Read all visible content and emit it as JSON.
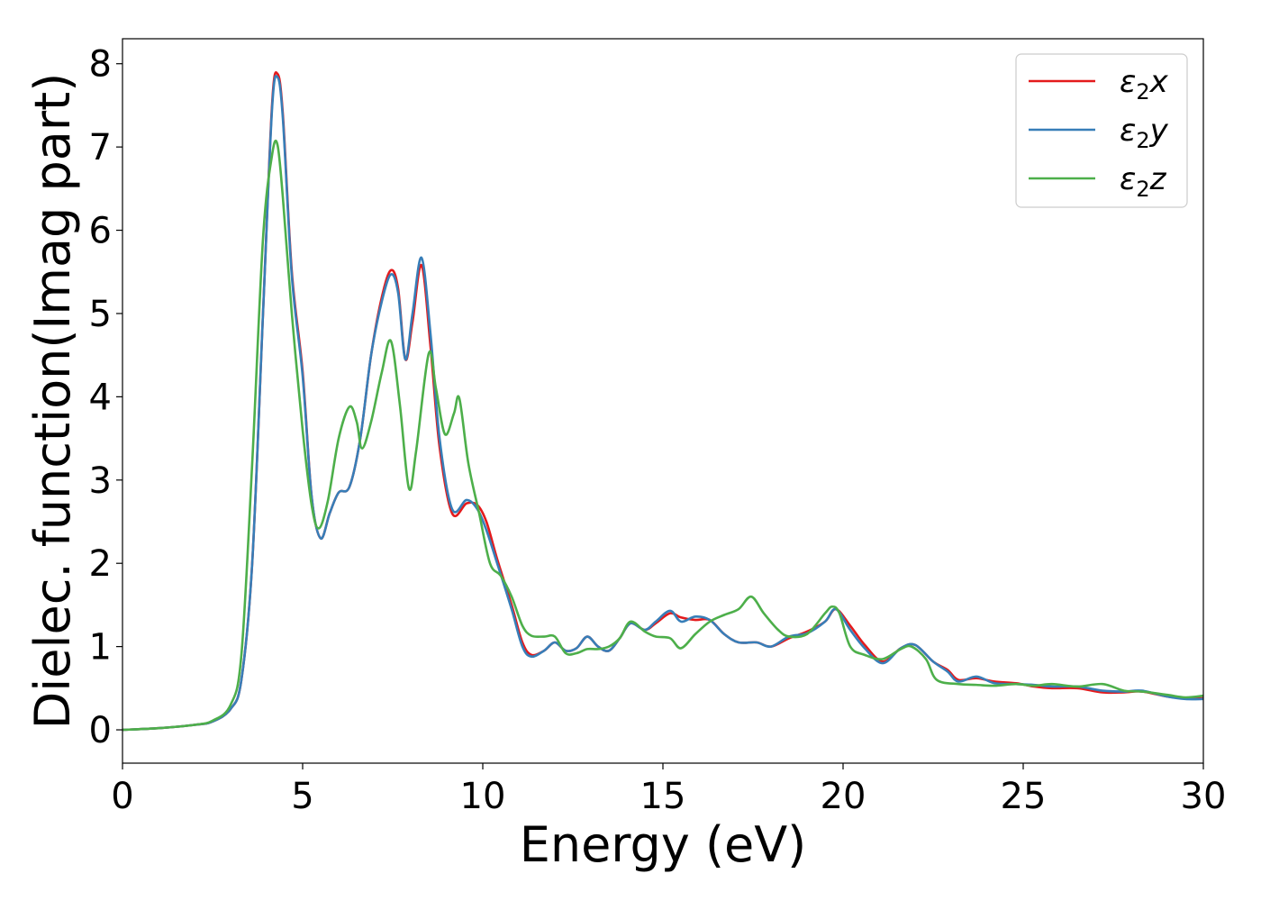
{
  "chart_data": {
    "type": "line",
    "title": "",
    "xlabel": "Energy (eV)",
    "ylabel": "Dielec. function(Imag part)",
    "xlim": [
      0,
      30
    ],
    "ylim": [
      -0.4,
      8.3
    ],
    "xticks": [
      0,
      5,
      10,
      15,
      20,
      25,
      30
    ],
    "yticks": [
      0,
      1,
      2,
      3,
      4,
      5,
      6,
      7,
      8
    ],
    "grid": false,
    "legend_position": "top-right",
    "series": [
      {
        "name": "ε2x",
        "legend_base": "ε",
        "legend_sub": "2",
        "legend_suffix": "x",
        "color": "#e41a1c",
        "points": [
          [
            0,
            0
          ],
          [
            1,
            0.02
          ],
          [
            2,
            0.06
          ],
          [
            2.5,
            0.1
          ],
          [
            3,
            0.25
          ],
          [
            3.3,
            0.6
          ],
          [
            3.6,
            2.0
          ],
          [
            3.9,
            5.0
          ],
          [
            4.15,
            7.5
          ],
          [
            4.3,
            7.88
          ],
          [
            4.45,
            7.4
          ],
          [
            4.7,
            5.5
          ],
          [
            5.0,
            4.3
          ],
          [
            5.25,
            2.8
          ],
          [
            5.5,
            2.3
          ],
          [
            5.75,
            2.6
          ],
          [
            6.0,
            2.85
          ],
          [
            6.3,
            2.92
          ],
          [
            6.6,
            3.5
          ],
          [
            6.9,
            4.5
          ],
          [
            7.2,
            5.2
          ],
          [
            7.45,
            5.52
          ],
          [
            7.65,
            5.3
          ],
          [
            7.85,
            4.45
          ],
          [
            8.05,
            4.9
          ],
          [
            8.3,
            5.58
          ],
          [
            8.55,
            4.6
          ],
          [
            8.8,
            3.4
          ],
          [
            9.15,
            2.6
          ],
          [
            9.55,
            2.72
          ],
          [
            9.85,
            2.7
          ],
          [
            10.1,
            2.5
          ],
          [
            10.4,
            2.05
          ],
          [
            10.8,
            1.5
          ],
          [
            11.1,
            1.05
          ],
          [
            11.35,
            0.9
          ],
          [
            11.7,
            0.95
          ],
          [
            12.0,
            1.05
          ],
          [
            12.3,
            0.95
          ],
          [
            12.6,
            0.98
          ],
          [
            12.9,
            1.12
          ],
          [
            13.2,
            1.0
          ],
          [
            13.5,
            0.95
          ],
          [
            13.8,
            1.1
          ],
          [
            14.1,
            1.28
          ],
          [
            14.5,
            1.2
          ],
          [
            14.8,
            1.28
          ],
          [
            15.2,
            1.4
          ],
          [
            15.5,
            1.35
          ],
          [
            15.9,
            1.32
          ],
          [
            16.3,
            1.32
          ],
          [
            16.7,
            1.15
          ],
          [
            17.1,
            1.05
          ],
          [
            17.6,
            1.05
          ],
          [
            18.0,
            1.0
          ],
          [
            18.5,
            1.1
          ],
          [
            19.0,
            1.18
          ],
          [
            19.5,
            1.3
          ],
          [
            19.8,
            1.45
          ],
          [
            20.2,
            1.25
          ],
          [
            20.6,
            1.02
          ],
          [
            21.1,
            0.82
          ],
          [
            21.6,
            0.98
          ],
          [
            22.0,
            1.02
          ],
          [
            22.5,
            0.82
          ],
          [
            22.9,
            0.72
          ],
          [
            23.2,
            0.6
          ],
          [
            23.7,
            0.62
          ],
          [
            24.2,
            0.58
          ],
          [
            24.8,
            0.56
          ],
          [
            25.3,
            0.52
          ],
          [
            25.8,
            0.5
          ],
          [
            26.5,
            0.5
          ],
          [
            27.2,
            0.45
          ],
          [
            27.8,
            0.45
          ],
          [
            28.3,
            0.46
          ],
          [
            29.0,
            0.4
          ],
          [
            29.5,
            0.38
          ],
          [
            30.0,
            0.38
          ]
        ]
      },
      {
        "name": "ε2y",
        "legend_base": "ε",
        "legend_sub": "2",
        "legend_suffix": "y",
        "color": "#377eb8",
        "points": [
          [
            0,
            0
          ],
          [
            1,
            0.02
          ],
          [
            2,
            0.06
          ],
          [
            2.5,
            0.1
          ],
          [
            3,
            0.25
          ],
          [
            3.3,
            0.6
          ],
          [
            3.6,
            2.0
          ],
          [
            3.9,
            5.0
          ],
          [
            4.15,
            7.45
          ],
          [
            4.3,
            7.84
          ],
          [
            4.45,
            7.35
          ],
          [
            4.7,
            5.45
          ],
          [
            5.0,
            4.25
          ],
          [
            5.25,
            2.8
          ],
          [
            5.5,
            2.3
          ],
          [
            5.75,
            2.6
          ],
          [
            6.0,
            2.85
          ],
          [
            6.3,
            2.92
          ],
          [
            6.6,
            3.5
          ],
          [
            6.9,
            4.5
          ],
          [
            7.2,
            5.15
          ],
          [
            7.45,
            5.47
          ],
          [
            7.65,
            5.25
          ],
          [
            7.85,
            4.45
          ],
          [
            8.05,
            5.0
          ],
          [
            8.3,
            5.67
          ],
          [
            8.55,
            4.75
          ],
          [
            8.8,
            3.5
          ],
          [
            9.15,
            2.65
          ],
          [
            9.55,
            2.76
          ],
          [
            9.85,
            2.65
          ],
          [
            10.1,
            2.4
          ],
          [
            10.4,
            2.0
          ],
          [
            10.8,
            1.45
          ],
          [
            11.1,
            1.0
          ],
          [
            11.35,
            0.88
          ],
          [
            11.7,
            0.95
          ],
          [
            12.0,
            1.05
          ],
          [
            12.3,
            0.95
          ],
          [
            12.6,
            0.98
          ],
          [
            12.9,
            1.12
          ],
          [
            13.2,
            1.0
          ],
          [
            13.5,
            0.95
          ],
          [
            13.8,
            1.1
          ],
          [
            14.1,
            1.28
          ],
          [
            14.5,
            1.2
          ],
          [
            14.8,
            1.3
          ],
          [
            15.2,
            1.43
          ],
          [
            15.5,
            1.3
          ],
          [
            15.9,
            1.36
          ],
          [
            16.3,
            1.32
          ],
          [
            16.7,
            1.15
          ],
          [
            17.1,
            1.05
          ],
          [
            17.6,
            1.05
          ],
          [
            18.0,
            1.0
          ],
          [
            18.5,
            1.12
          ],
          [
            19.0,
            1.16
          ],
          [
            19.5,
            1.3
          ],
          [
            19.8,
            1.45
          ],
          [
            20.2,
            1.2
          ],
          [
            20.6,
            0.98
          ],
          [
            21.1,
            0.8
          ],
          [
            21.6,
            0.98
          ],
          [
            22.0,
            1.02
          ],
          [
            22.5,
            0.82
          ],
          [
            22.9,
            0.7
          ],
          [
            23.2,
            0.58
          ],
          [
            23.7,
            0.64
          ],
          [
            24.2,
            0.56
          ],
          [
            24.8,
            0.55
          ],
          [
            25.3,
            0.54
          ],
          [
            25.8,
            0.52
          ],
          [
            26.5,
            0.52
          ],
          [
            27.2,
            0.47
          ],
          [
            27.8,
            0.46
          ],
          [
            28.3,
            0.47
          ],
          [
            29.0,
            0.4
          ],
          [
            29.5,
            0.37
          ],
          [
            30.0,
            0.37
          ]
        ]
      },
      {
        "name": "ε2z",
        "legend_base": "ε",
        "legend_sub": "2",
        "legend_suffix": "z",
        "color": "#4daf4a",
        "points": [
          [
            0,
            0
          ],
          [
            1,
            0.02
          ],
          [
            2,
            0.06
          ],
          [
            2.5,
            0.11
          ],
          [
            3,
            0.3
          ],
          [
            3.3,
            0.9
          ],
          [
            3.6,
            3.2
          ],
          [
            3.9,
            5.9
          ],
          [
            4.15,
            6.9
          ],
          [
            4.3,
            7.03
          ],
          [
            4.45,
            6.4
          ],
          [
            4.7,
            5.0
          ],
          [
            5.0,
            3.6
          ],
          [
            5.25,
            2.7
          ],
          [
            5.45,
            2.42
          ],
          [
            5.7,
            2.75
          ],
          [
            6.0,
            3.5
          ],
          [
            6.3,
            3.88
          ],
          [
            6.5,
            3.7
          ],
          [
            6.65,
            3.38
          ],
          [
            6.9,
            3.7
          ],
          [
            7.2,
            4.3
          ],
          [
            7.45,
            4.67
          ],
          [
            7.7,
            3.9
          ],
          [
            7.95,
            2.9
          ],
          [
            8.15,
            3.35
          ],
          [
            8.5,
            4.52
          ],
          [
            8.7,
            4.1
          ],
          [
            8.95,
            3.55
          ],
          [
            9.2,
            3.8
          ],
          [
            9.35,
            3.98
          ],
          [
            9.6,
            3.2
          ],
          [
            9.9,
            2.6
          ],
          [
            10.2,
            2.0
          ],
          [
            10.5,
            1.85
          ],
          [
            10.8,
            1.6
          ],
          [
            11.1,
            1.25
          ],
          [
            11.35,
            1.13
          ],
          [
            11.7,
            1.12
          ],
          [
            12.0,
            1.12
          ],
          [
            12.3,
            0.92
          ],
          [
            12.6,
            0.92
          ],
          [
            12.9,
            0.97
          ],
          [
            13.2,
            0.97
          ],
          [
            13.5,
            1.0
          ],
          [
            13.8,
            1.1
          ],
          [
            14.1,
            1.3
          ],
          [
            14.5,
            1.18
          ],
          [
            14.8,
            1.12
          ],
          [
            15.2,
            1.1
          ],
          [
            15.5,
            0.98
          ],
          [
            15.9,
            1.15
          ],
          [
            16.3,
            1.3
          ],
          [
            16.7,
            1.38
          ],
          [
            17.1,
            1.45
          ],
          [
            17.45,
            1.6
          ],
          [
            17.8,
            1.4
          ],
          [
            18.2,
            1.2
          ],
          [
            18.5,
            1.12
          ],
          [
            19.0,
            1.15
          ],
          [
            19.5,
            1.4
          ],
          [
            19.7,
            1.48
          ],
          [
            19.9,
            1.4
          ],
          [
            20.2,
            1.0
          ],
          [
            20.6,
            0.9
          ],
          [
            21.1,
            0.85
          ],
          [
            21.6,
            0.97
          ],
          [
            21.9,
            1.0
          ],
          [
            22.3,
            0.85
          ],
          [
            22.6,
            0.6
          ],
          [
            23.2,
            0.55
          ],
          [
            23.7,
            0.54
          ],
          [
            24.2,
            0.53
          ],
          [
            24.8,
            0.55
          ],
          [
            25.3,
            0.53
          ],
          [
            25.8,
            0.55
          ],
          [
            26.5,
            0.52
          ],
          [
            27.2,
            0.55
          ],
          [
            27.8,
            0.47
          ],
          [
            28.3,
            0.46
          ],
          [
            29.0,
            0.42
          ],
          [
            29.5,
            0.39
          ],
          [
            30.0,
            0.41
          ]
        ]
      }
    ]
  }
}
